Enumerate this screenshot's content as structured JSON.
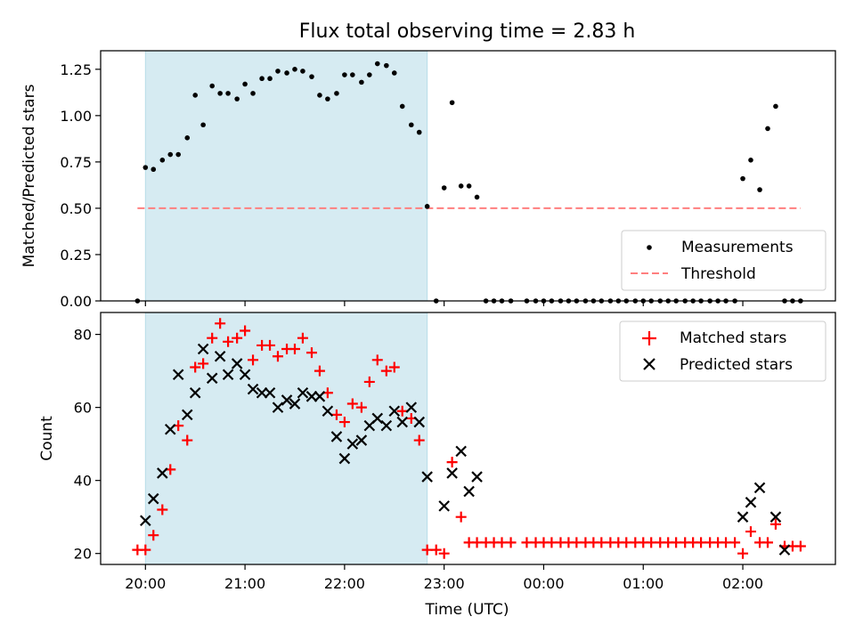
{
  "figure": {
    "title": "Flux total observing time = 2.83 h",
    "xlabel": "Time (UTC)",
    "x_tick_labels": [
      "20:00",
      "21:00",
      "22:00",
      "23:00",
      "00:00",
      "01:00",
      "02:00"
    ],
    "colors": {
      "shade": "#add8e6",
      "measurement": "#000000",
      "threshold": "#ff7f7f",
      "matched": "#ff0000",
      "predicted": "#000000"
    }
  },
  "chart_data": [
    {
      "type": "scatter",
      "ylabel": "Matched/Predicted stars",
      "xlim_hours": [
        19.55,
        26.93
      ],
      "ylim": [
        0.0,
        1.35
      ],
      "yticks": [
        0.0,
        0.25,
        0.5,
        0.75,
        1.0,
        1.25
      ],
      "ytick_labels": [
        "0.00",
        "0.25",
        "0.50",
        "0.75",
        "1.00",
        "1.25"
      ],
      "shaded_interval_hours": [
        20.0,
        22.83
      ],
      "legend": {
        "position": "lower-right",
        "entries": [
          "Measurements",
          "Threshold"
        ]
      },
      "threshold": {
        "name": "Threshold",
        "y": 0.5,
        "x_range_hours": [
          19.92,
          26.58
        ]
      },
      "series": [
        {
          "name": "Measurements",
          "x": [
            19.92,
            20.0,
            20.08,
            20.17,
            20.25,
            20.33,
            20.42,
            20.5,
            20.58,
            20.67,
            20.75,
            20.83,
            20.92,
            21.0,
            21.08,
            21.17,
            21.25,
            21.33,
            21.42,
            21.5,
            21.58,
            21.67,
            21.75,
            21.83,
            21.92,
            22.0,
            22.08,
            22.17,
            22.25,
            22.33,
            22.42,
            22.5,
            22.58,
            22.67,
            22.75,
            22.83,
            22.92,
            23.0,
            23.08,
            23.17,
            23.25,
            23.33,
            23.42,
            23.5,
            23.58,
            23.67,
            23.83,
            23.92,
            24.0,
            24.08,
            24.17,
            24.25,
            24.33,
            24.42,
            24.5,
            24.58,
            24.67,
            24.75,
            24.83,
            24.92,
            25.0,
            25.08,
            25.17,
            25.25,
            25.33,
            25.42,
            25.5,
            25.58,
            25.67,
            25.75,
            25.83,
            25.92,
            26.0,
            26.08,
            26.17,
            26.25,
            26.33,
            26.42,
            26.5,
            26.58
          ],
          "y": [
            0.0,
            0.72,
            0.71,
            0.76,
            0.79,
            0.79,
            0.88,
            1.11,
            0.95,
            1.16,
            1.12,
            1.12,
            1.09,
            1.17,
            1.12,
            1.2,
            1.2,
            1.24,
            1.23,
            1.25,
            1.24,
            1.21,
            1.11,
            1.09,
            1.12,
            1.22,
            1.22,
            1.18,
            1.22,
            1.28,
            1.27,
            1.23,
            1.05,
            0.95,
            0.91,
            0.51,
            0.0,
            0.61,
            1.07,
            0.62,
            0.62,
            0.56,
            0.0,
            0.0,
            0.0,
            0.0,
            0.0,
            0.0,
            0.0,
            0.0,
            0.0,
            0.0,
            0.0,
            0.0,
            0.0,
            0.0,
            0.0,
            0.0,
            0.0,
            0.0,
            0.0,
            0.0,
            0.0,
            0.0,
            0.0,
            0.0,
            0.0,
            0.0,
            0.0,
            0.0,
            0.0,
            0.0,
            0.66,
            0.76,
            0.6,
            0.93,
            1.05,
            0.0,
            0.0,
            0.0
          ]
        }
      ]
    },
    {
      "type": "scatter",
      "ylabel": "Count",
      "xlim_hours": [
        19.55,
        26.93
      ],
      "ylim": [
        17,
        86
      ],
      "yticks": [
        20,
        40,
        60,
        80
      ],
      "ytick_labels": [
        "20",
        "40",
        "60",
        "80"
      ],
      "shaded_interval_hours": [
        20.0,
        22.83
      ],
      "legend": {
        "position": "upper-right",
        "entries": [
          "Matched stars",
          "Predicted stars"
        ]
      },
      "series": [
        {
          "name": "Matched stars",
          "marker": "plus",
          "x": [
            19.92,
            20.0,
            20.08,
            20.17,
            20.25,
            20.33,
            20.42,
            20.5,
            20.58,
            20.67,
            20.75,
            20.83,
            20.92,
            21.0,
            21.08,
            21.17,
            21.25,
            21.33,
            21.42,
            21.5,
            21.58,
            21.67,
            21.75,
            21.83,
            21.92,
            22.0,
            22.08,
            22.17,
            22.25,
            22.33,
            22.42,
            22.5,
            22.58,
            22.67,
            22.75,
            22.83,
            22.92,
            23.0,
            23.08,
            23.17,
            23.25,
            23.33,
            23.42,
            23.5,
            23.58,
            23.67,
            23.83,
            23.92,
            24.0,
            24.08,
            24.17,
            24.25,
            24.33,
            24.42,
            24.5,
            24.58,
            24.67,
            24.75,
            24.83,
            24.92,
            25.0,
            25.08,
            25.17,
            25.25,
            25.33,
            25.42,
            25.5,
            25.58,
            25.67,
            25.75,
            25.83,
            25.92,
            26.0,
            26.08,
            26.17,
            26.25,
            26.33,
            26.42,
            26.5,
            26.58
          ],
          "y": [
            21,
            21,
            25,
            32,
            43,
            55,
            51,
            71,
            72,
            79,
            83,
            78,
            79,
            81,
            73,
            77,
            77,
            74,
            76,
            76,
            79,
            75,
            70,
            64,
            58,
            56,
            61,
            60,
            67,
            73,
            70,
            71,
            59,
            57,
            51,
            21,
            21,
            20,
            45,
            30,
            23,
            23,
            23,
            23,
            23,
            23,
            23,
            23,
            23,
            23,
            23,
            23,
            23,
            23,
            23,
            23,
            23,
            23,
            23,
            23,
            23,
            23,
            23,
            23,
            23,
            23,
            23,
            23,
            23,
            23,
            23,
            23,
            20,
            26,
            23,
            23,
            28,
            22,
            22,
            22
          ]
        },
        {
          "name": "Predicted stars",
          "marker": "cross",
          "x": [
            20.0,
            20.08,
            20.17,
            20.25,
            20.33,
            20.42,
            20.5,
            20.58,
            20.67,
            20.75,
            20.83,
            20.92,
            21.0,
            21.08,
            21.17,
            21.25,
            21.33,
            21.42,
            21.5,
            21.58,
            21.67,
            21.75,
            21.83,
            21.92,
            22.0,
            22.08,
            22.17,
            22.25,
            22.33,
            22.42,
            22.5,
            22.58,
            22.67,
            22.75,
            22.83,
            23.0,
            23.08,
            23.17,
            23.25,
            23.33,
            26.0,
            26.08,
            26.17,
            26.33,
            26.42
          ],
          "y": [
            29,
            35,
            42,
            54,
            69,
            58,
            64,
            76,
            68,
            74,
            69,
            72,
            69,
            65,
            64,
            64,
            60,
            62,
            61,
            64,
            63,
            63,
            59,
            52,
            46,
            50,
            51,
            55,
            57,
            55,
            59,
            56,
            60,
            56,
            41,
            33,
            42,
            48,
            37,
            41,
            30,
            34,
            38,
            30,
            21
          ]
        }
      ]
    }
  ]
}
